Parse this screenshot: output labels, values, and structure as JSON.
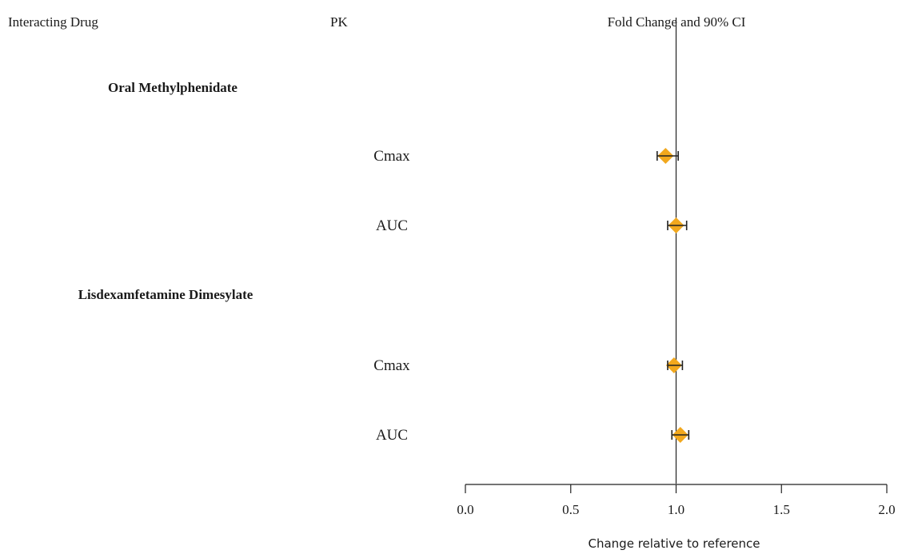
{
  "headers": {
    "drug": "Interacting Drug",
    "pk": "PK",
    "effect": "Fold Change and 90% CI"
  },
  "colors": {
    "marker": "#f2a81d",
    "line": "#222222"
  },
  "chart_data": {
    "type": "forest",
    "xlabel": "Change relative to reference",
    "xlim": [
      0,
      2
    ],
    "xticks": [
      "0.0",
      "0.5",
      "1.0",
      "1.5",
      "2.0"
    ],
    "reference_line": 1.0,
    "groups": [
      {
        "name": "Oral Methylphenidate",
        "rows": [
          {
            "label": "Cmax",
            "estimate": 0.95,
            "ci": [
              0.91,
              1.01
            ]
          },
          {
            "label": "AUC",
            "estimate": 1.0,
            "ci": [
              0.96,
              1.05
            ]
          }
        ]
      },
      {
        "name": "Lisdexamfetamine Dimesylate",
        "rows": [
          {
            "label": "Cmax",
            "estimate": 0.99,
            "ci": [
              0.96,
              1.03
            ]
          },
          {
            "label": "AUC",
            "estimate": 1.02,
            "ci": [
              0.98,
              1.06
            ]
          }
        ]
      }
    ]
  }
}
